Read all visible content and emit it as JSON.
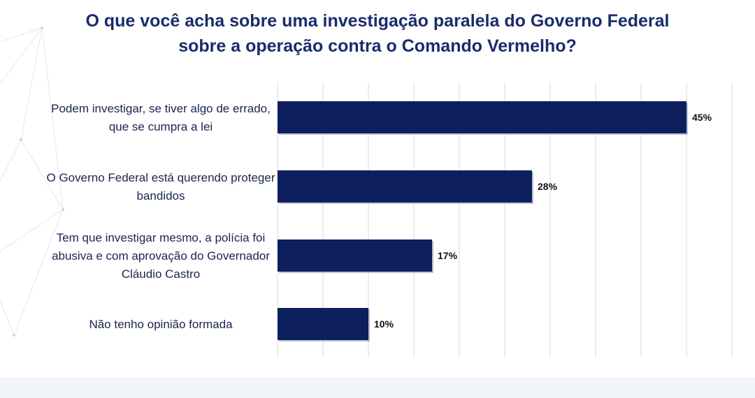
{
  "title_lines": [
    "O que você acha sobre uma investigação paralela do Governo Federal",
    "sobre a operação contra o Comando Vermelho?"
  ],
  "colors": {
    "bar": "#0d1f5c",
    "title": "#1a2c6b",
    "grid": "#d9d9d9"
  },
  "chart_data": {
    "type": "bar",
    "orientation": "horizontal",
    "categories": [
      [
        "Podem investigar, se tiver algo de errado,",
        "que se cumpra a lei"
      ],
      [
        "O Governo Federal está querendo proteger",
        "bandidos"
      ],
      [
        "Tem que investigar mesmo, a polícia foi",
        "abusiva e com aprovação do Governador",
        "Cláudio Castro"
      ],
      [
        "Não tenho opinião formada"
      ]
    ],
    "values": [
      45,
      28,
      17,
      10
    ],
    "value_labels": [
      "45%",
      "28%",
      "17%",
      "10%"
    ],
    "xlim": [
      0,
      50
    ],
    "grid": true,
    "legend": "none"
  }
}
